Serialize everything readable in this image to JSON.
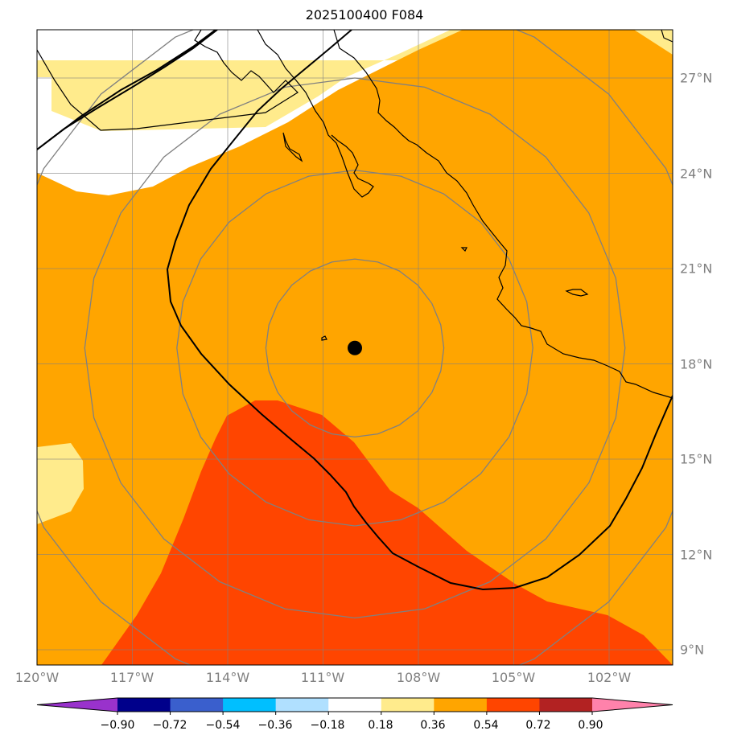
{
  "title": "2025100400 F084",
  "colors": {
    "background_white": "#ffffff",
    "light_yellow": "#ffeb8c",
    "orange": "#ffa500",
    "red_orange": "#ff4500",
    "grid": "#808080",
    "coastline": "#000000",
    "track": "#000000"
  },
  "lon_labels": [
    "120°W",
    "117°W",
    "114°W",
    "111°W",
    "108°W",
    "105°W",
    "102°W"
  ],
  "lat_labels": [
    "27°N",
    "24°N",
    "21°N",
    "18°N",
    "15°N",
    "12°N",
    "9°N"
  ],
  "storm_center": {
    "lon": -110.0,
    "lat": 18.5
  },
  "colorbar": {
    "ticks": [
      "−0.90",
      "−0.72",
      "−0.54",
      "−0.36",
      "−0.18",
      "0.18",
      "0.36",
      "0.54",
      "0.72",
      "0.90"
    ],
    "colors": [
      "#9932cc",
      "#00008b",
      "#3a5fcd",
      "#00bfff",
      "#b0e0ff",
      "#ffffff",
      "#ffeb8c",
      "#ffa500",
      "#ff4500",
      "#b22222",
      "#ff82ab"
    ]
  }
}
